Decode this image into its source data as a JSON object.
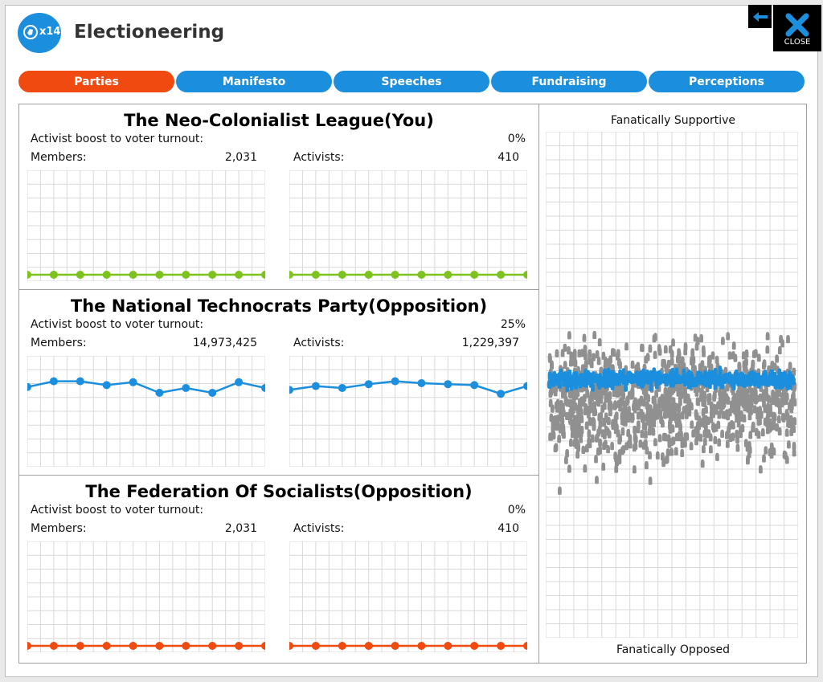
{
  "window": {
    "title": "Electioneering",
    "badge": "x14",
    "close_label": "CLOSE"
  },
  "tabs": [
    {
      "label": "Parties",
      "active": true
    },
    {
      "label": "Manifesto",
      "active": false
    },
    {
      "label": "Speeches",
      "active": false
    },
    {
      "label": "Fundraising",
      "active": false
    },
    {
      "label": "Perceptions",
      "active": false
    }
  ],
  "colors": {
    "tab": "#1b8fde",
    "tab_active": "#f04a10",
    "green": "#7dc21e",
    "blue": "#1b8fde",
    "orange": "#f04a10",
    "grey": "#909090"
  },
  "parties": [
    {
      "name": "The Neo-Colonialist League(You)",
      "turnout_label": "Activist boost to voter turnout:",
      "turnout_value": "0%",
      "members_label": "Members:",
      "members_value": "2,031",
      "activists_label": "Activists:",
      "activists_value": "410",
      "color": "#7dc21e"
    },
    {
      "name": "The National Technocrats Party(Opposition)",
      "turnout_label": "Activist boost to voter turnout:",
      "turnout_value": "25%",
      "members_label": "Members:",
      "members_value": "14,973,425",
      "activists_label": "Activists:",
      "activists_value": "1,229,397",
      "color": "#1b8fde"
    },
    {
      "name": "The Federation Of Socialists(Opposition)",
      "turnout_label": "Activist boost to voter turnout:",
      "turnout_value": "0%",
      "members_label": "Members:",
      "members_value": "2,031",
      "activists_label": "Activists:",
      "activists_value": "410",
      "color": "#f04a10"
    }
  ],
  "chart_data": [
    {
      "type": "line",
      "series": [
        {
          "values": [
            0,
            0,
            0,
            0,
            0,
            0,
            0,
            0,
            0,
            0
          ]
        }
      ],
      "ylim": [
        0,
        1
      ]
    },
    {
      "type": "line",
      "series": [
        {
          "values": [
            0,
            0,
            0,
            0,
            0,
            0,
            0,
            0,
            0,
            0
          ]
        }
      ],
      "ylim": [
        0,
        1
      ]
    },
    {
      "type": "line",
      "series": [
        {
          "values": [
            0.76,
            0.82,
            0.82,
            0.78,
            0.81,
            0.7,
            0.75,
            0.7,
            0.81,
            0.75
          ]
        }
      ],
      "ylim": [
        0,
        1
      ]
    },
    {
      "type": "line",
      "series": [
        {
          "values": [
            0.73,
            0.77,
            0.75,
            0.79,
            0.82,
            0.8,
            0.79,
            0.78,
            0.69,
            0.77
          ]
        }
      ],
      "ylim": [
        0,
        1
      ]
    },
    {
      "type": "line",
      "series": [
        {
          "values": [
            0,
            0,
            0,
            0,
            0,
            0,
            0,
            0,
            0,
            0
          ]
        }
      ],
      "ylim": [
        0,
        1
      ]
    },
    {
      "type": "line",
      "series": [
        {
          "values": [
            0,
            0,
            0,
            0,
            0,
            0,
            0,
            0,
            0,
            0
          ]
        }
      ],
      "ylim": [
        0,
        1
      ]
    }
  ],
  "perceptions": {
    "top_label": "Fanatically Supportive",
    "bottom_label": "Fanatically Opposed"
  }
}
